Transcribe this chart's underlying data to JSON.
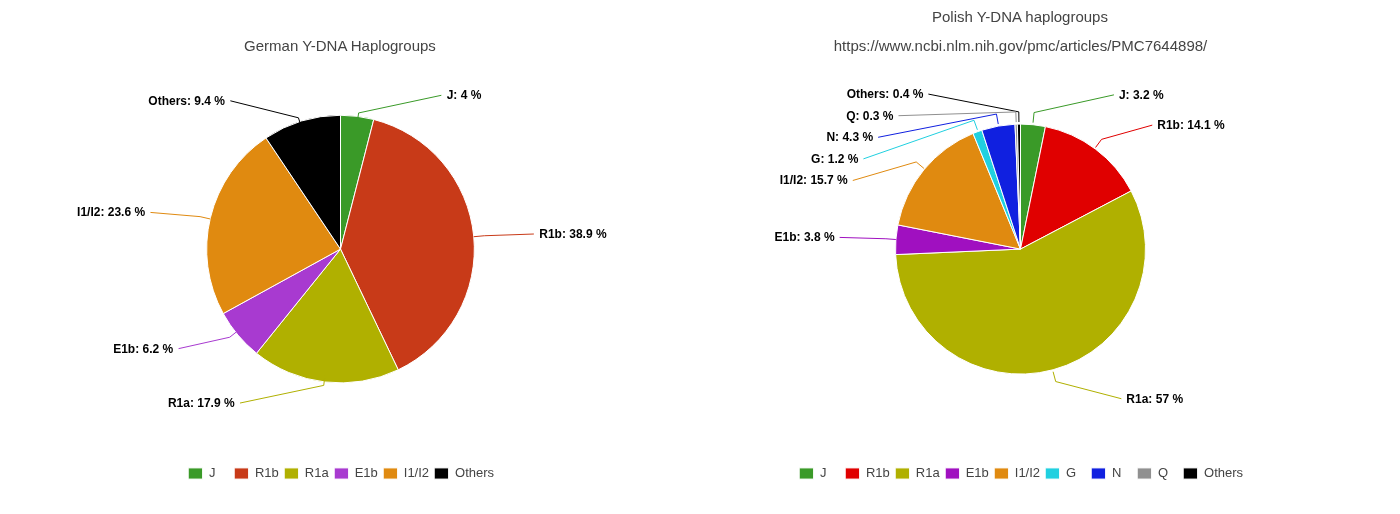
{
  "chart_data": [
    {
      "type": "pie",
      "title": "German Y-DNA Haplogroups",
      "categories": [
        "J",
        "R1b",
        "R1a",
        "E1b",
        "I1/I2",
        "Others"
      ],
      "values": [
        4,
        38.9,
        17.9,
        6.2,
        23.6,
        9.4
      ],
      "colors": [
        "#3a9a28",
        "#c83a18",
        "#b0b000",
        "#a83ad0",
        "#e08a10",
        "#000000"
      ],
      "value_labels": [
        "J: 4 %",
        "R1b: 38.9 %",
        "R1a: 17.9 %",
        "E1b: 6.2 %",
        "I1/I2: 23.6 %",
        "Others: 9.4 %"
      ],
      "legend": "bottom"
    },
    {
      "type": "pie",
      "title": "Polish Y-DNA haplogroups",
      "subtitle": "https://www.ncbi.nlm.nih.gov/pmc/articles/PMC7644898/",
      "categories": [
        "J",
        "R1b",
        "R1a",
        "E1b",
        "I1/I2",
        "G",
        "N",
        "Q",
        "Others"
      ],
      "values": [
        3.2,
        14.1,
        57,
        3.8,
        15.7,
        1.2,
        4.3,
        0.3,
        0.4
      ],
      "colors": [
        "#3a9a28",
        "#e00000",
        "#b0b000",
        "#a010c0",
        "#e08a10",
        "#20d0e0",
        "#1020e0",
        "#909090",
        "#000000"
      ],
      "value_labels": [
        "J: 3.2 %",
        "R1b: 14.1 %",
        "R1a: 57 %",
        "E1b: 3.8 %",
        "I1/I2: 15.7 %",
        "G: 1.2 %",
        "N: 4.3 %",
        "Q: 0.3 %",
        "Others: 0.4 %"
      ],
      "legend": "bottom"
    }
  ]
}
